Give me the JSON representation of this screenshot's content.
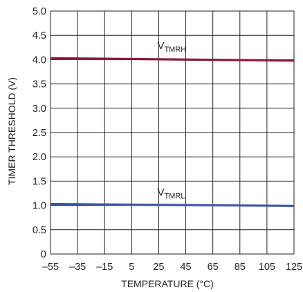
{
  "chart_data": {
    "type": "line",
    "title": "",
    "xlabel": "TEMPERATURE (°C)",
    "ylabel": "TIMER THRESHOLD (V)",
    "xlim": [
      -55,
      125
    ],
    "ylim": [
      0,
      5.0
    ],
    "x_ticks": [
      "–55",
      "–35",
      "–15",
      "5",
      "25",
      "45",
      "65",
      "85",
      "105",
      "125"
    ],
    "x_tick_values": [
      -55,
      -35,
      -15,
      5,
      25,
      45,
      65,
      85,
      105,
      125
    ],
    "y_ticks": [
      "0",
      "0.5",
      "1.0",
      "1.5",
      "2.0",
      "2.5",
      "3.0",
      "3.5",
      "4.0",
      "4.5",
      "5.0"
    ],
    "y_tick_values": [
      0,
      0.5,
      1.0,
      1.5,
      2.0,
      2.5,
      3.0,
      3.5,
      4.0,
      4.5,
      5.0
    ],
    "grid": true,
    "series": [
      {
        "name_main": "V",
        "name_sub": "TMRH",
        "color": "#8b1a36",
        "x": [
          -55,
          125
        ],
        "y": [
          4.03,
          3.98
        ],
        "label_at": {
          "x": 25,
          "y": 4.25
        }
      },
      {
        "name_main": "V",
        "name_sub": "TMRL",
        "color": "#3b55a5",
        "x": [
          -55,
          125
        ],
        "y": [
          1.03,
          0.99
        ],
        "label_at": {
          "x": 25,
          "y": 1.23
        }
      }
    ]
  }
}
